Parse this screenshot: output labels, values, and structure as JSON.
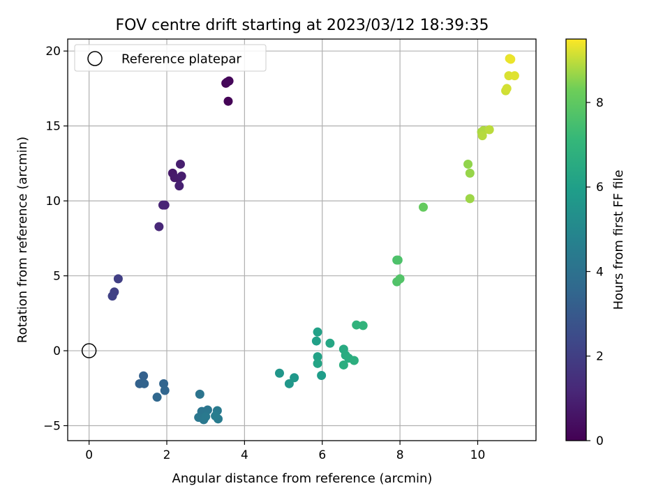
{
  "chart_data": {
    "type": "scatter",
    "title": "FOV centre drift starting at 2023/03/12 18:39:35",
    "xlabel": "Angular distance from reference (arcmin)",
    "ylabel": "Rotation from reference (arcmin)",
    "xlim": [
      -0.55,
      11.5
    ],
    "ylim": [
      -6.0,
      20.8
    ],
    "xticks": [
      0,
      2,
      4,
      6,
      8,
      10
    ],
    "yticks": [
      -5,
      0,
      5,
      10,
      15,
      20
    ],
    "grid": true,
    "legend": {
      "position": "top-left",
      "label": "Reference platepar"
    },
    "reference_point": {
      "x": 0,
      "y": 0
    },
    "colorbar": {
      "label": "Hours from first FF file",
      "range": [
        0,
        9.5
      ],
      "ticks": [
        0,
        2,
        4,
        6,
        8
      ],
      "colormap": "viridis"
    },
    "series": [
      {
        "points": [
          {
            "x": 3.58,
            "y": 16.65,
            "c": 0.05
          },
          {
            "x": 3.52,
            "y": 17.85,
            "c": 0.1
          },
          {
            "x": 3.6,
            "y": 18.0,
            "c": 0.15
          },
          {
            "x": 3.55,
            "y": 17.92,
            "c": 0.2
          },
          {
            "x": 2.15,
            "y": 11.85,
            "c": 0.7
          },
          {
            "x": 2.2,
            "y": 11.55,
            "c": 0.75
          },
          {
            "x": 2.3,
            "y": 11.5,
            "c": 0.8
          },
          {
            "x": 2.38,
            "y": 11.65,
            "c": 0.85
          },
          {
            "x": 2.35,
            "y": 12.45,
            "c": 0.9
          },
          {
            "x": 2.32,
            "y": 11.0,
            "c": 0.95
          },
          {
            "x": 1.95,
            "y": 9.72,
            "c": 1.05
          },
          {
            "x": 1.9,
            "y": 9.72,
            "c": 1.1
          },
          {
            "x": 1.8,
            "y": 8.28,
            "c": 1.2
          },
          {
            "x": 0.75,
            "y": 4.8,
            "c": 2.0
          },
          {
            "x": 0.65,
            "y": 3.92,
            "c": 2.05
          },
          {
            "x": 0.6,
            "y": 3.65,
            "c": 2.1
          },
          {
            "x": 1.4,
            "y": -1.68,
            "c": 3.3
          },
          {
            "x": 1.3,
            "y": -2.2,
            "c": 3.35
          },
          {
            "x": 1.42,
            "y": -2.2,
            "c": 3.4
          },
          {
            "x": 1.92,
            "y": -2.2,
            "c": 3.45
          },
          {
            "x": 1.95,
            "y": -2.65,
            "c": 3.5
          },
          {
            "x": 1.75,
            "y": -3.1,
            "c": 3.55
          },
          {
            "x": 2.85,
            "y": -2.9,
            "c": 4.1
          },
          {
            "x": 2.9,
            "y": -4.05,
            "c": 4.15
          },
          {
            "x": 3.05,
            "y": -3.95,
            "c": 4.2
          },
          {
            "x": 2.82,
            "y": -4.45,
            "c": 4.25
          },
          {
            "x": 2.95,
            "y": -4.6,
            "c": 4.3
          },
          {
            "x": 3.0,
            "y": -4.4,
            "c": 4.35
          },
          {
            "x": 3.3,
            "y": -4.0,
            "c": 4.4
          },
          {
            "x": 3.32,
            "y": -4.55,
            "c": 4.45
          },
          {
            "x": 3.25,
            "y": -4.35,
            "c": 4.5
          },
          {
            "x": 4.9,
            "y": -1.5,
            "c": 5.6
          },
          {
            "x": 5.15,
            "y": -2.2,
            "c": 5.65
          },
          {
            "x": 5.28,
            "y": -1.8,
            "c": 5.7
          },
          {
            "x": 5.98,
            "y": -1.65,
            "c": 5.9
          },
          {
            "x": 5.85,
            "y": 0.65,
            "c": 6.05
          },
          {
            "x": 5.88,
            "y": 1.25,
            "c": 6.1
          },
          {
            "x": 5.88,
            "y": -0.4,
            "c": 6.15
          },
          {
            "x": 5.88,
            "y": -0.85,
            "c": 6.2
          },
          {
            "x": 6.2,
            "y": 0.5,
            "c": 6.3
          },
          {
            "x": 6.55,
            "y": 0.1,
            "c": 6.5
          },
          {
            "x": 6.6,
            "y": -0.3,
            "c": 6.55
          },
          {
            "x": 6.68,
            "y": -0.5,
            "c": 6.6
          },
          {
            "x": 6.55,
            "y": -0.95,
            "c": 6.65
          },
          {
            "x": 6.82,
            "y": -0.65,
            "c": 6.7
          },
          {
            "x": 6.88,
            "y": 1.72,
            "c": 6.9
          },
          {
            "x": 7.05,
            "y": 1.68,
            "c": 6.95
          },
          {
            "x": 7.92,
            "y": 6.05,
            "c": 7.6
          },
          {
            "x": 7.95,
            "y": 6.05,
            "c": 7.65
          },
          {
            "x": 7.92,
            "y": 4.6,
            "c": 7.7
          },
          {
            "x": 8.0,
            "y": 4.8,
            "c": 7.75
          },
          {
            "x": 8.6,
            "y": 9.58,
            "c": 8.1
          },
          {
            "x": 9.75,
            "y": 12.45,
            "c": 8.6
          },
          {
            "x": 9.8,
            "y": 11.85,
            "c": 8.65
          },
          {
            "x": 9.8,
            "y": 10.15,
            "c": 8.7
          },
          {
            "x": 10.1,
            "y": 14.6,
            "c": 8.8
          },
          {
            "x": 10.15,
            "y": 14.7,
            "c": 8.85
          },
          {
            "x": 10.12,
            "y": 14.35,
            "c": 8.9
          },
          {
            "x": 10.3,
            "y": 14.75,
            "c": 8.95
          },
          {
            "x": 10.72,
            "y": 17.35,
            "c": 9.1
          },
          {
            "x": 10.75,
            "y": 17.5,
            "c": 9.15
          },
          {
            "x": 10.8,
            "y": 18.35,
            "c": 9.2
          },
          {
            "x": 10.95,
            "y": 18.35,
            "c": 9.25
          },
          {
            "x": 10.82,
            "y": 19.5,
            "c": 9.3
          },
          {
            "x": 10.85,
            "y": 19.45,
            "c": 9.35
          }
        ]
      }
    ]
  }
}
